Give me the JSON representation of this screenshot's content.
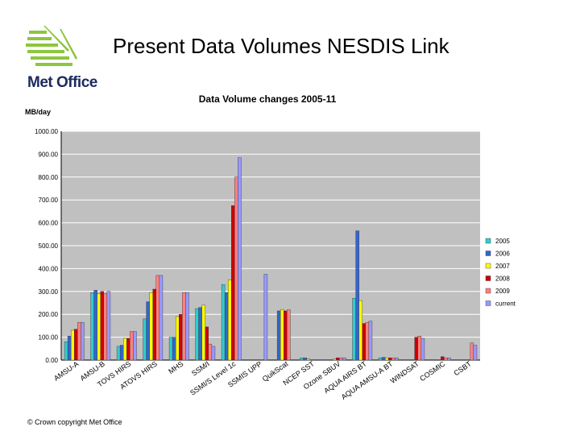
{
  "slide": {
    "title": "Present Data Volumes NESDIS Link",
    "logo_text": "Met Office",
    "footer": "© Crown copyright   Met Office"
  },
  "colors": {
    "logo_green": "#8dc63f",
    "logo_navy": "#1b2a5c",
    "plot_bg": "#c0c0c0"
  },
  "chart_data": {
    "type": "bar",
    "title": "Data Volume changes 2005-11",
    "ylabel": "MB/day",
    "xlabel": "",
    "ylim": [
      0,
      1000
    ],
    "yticks": [
      "0.00",
      "100.00",
      "200.00",
      "300.00",
      "400.00",
      "500.00",
      "600.00",
      "700.00",
      "800.00",
      "900.00",
      "1000.00"
    ],
    "grid": true,
    "legend_position": "right",
    "categories": [
      "AMSU-A",
      "AMSU-B",
      "TOVS HIRS",
      "ATOVS HIRS",
      "MHS",
      "SSM/I",
      "SSMI/S Level 1c",
      "SSMIS UPP",
      "QuikScat",
      "NCEP SST",
      "Ozone SBUV",
      "AQUA AIRS BT",
      "AQUA AMSU-A BT",
      "WINDSAT",
      "COSMIC",
      "CSBT"
    ],
    "series": [
      {
        "name": "2005",
        "color": "#33cccc",
        "values": [
          80,
          295,
          60,
          180,
          100,
          225,
          330,
          0,
          0,
          10,
          0,
          270,
          10,
          0,
          0,
          0
        ]
      },
      {
        "name": "2006",
        "color": "#3366cc",
        "values": [
          105,
          305,
          65,
          255,
          100,
          230,
          295,
          0,
          215,
          10,
          0,
          565,
          12,
          0,
          0,
          0
        ]
      },
      {
        "name": "2007",
        "color": "#ffff00",
        "values": [
          130,
          290,
          95,
          295,
          190,
          240,
          350,
          0,
          220,
          5,
          5,
          260,
          10,
          0,
          0,
          0
        ]
      },
      {
        "name": "2008",
        "color": "#cc0000",
        "values": [
          135,
          300,
          95,
          310,
          200,
          145,
          675,
          0,
          215,
          0,
          10,
          160,
          10,
          100,
          15,
          0
        ]
      },
      {
        "name": "2009",
        "color": "#ff8080",
        "values": [
          165,
          290,
          125,
          370,
          295,
          70,
          800,
          0,
          220,
          0,
          10,
          165,
          10,
          105,
          10,
          75
        ]
      },
      {
        "name": "current",
        "color": "#9999ff",
        "values": [
          165,
          300,
          125,
          370,
          295,
          60,
          885,
          375,
          0,
          0,
          10,
          170,
          10,
          95,
          10,
          65
        ]
      }
    ]
  }
}
